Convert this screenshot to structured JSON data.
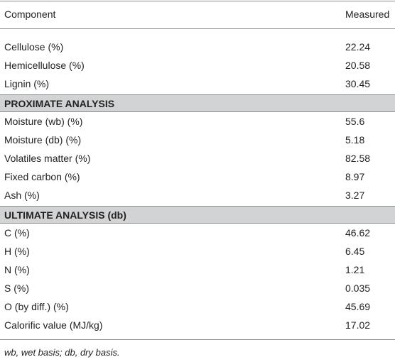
{
  "table": {
    "header": [
      "Component",
      "Measured"
    ],
    "sections": [
      {
        "rows": [
          [
            "Cellulose (%)",
            "22.24"
          ],
          [
            "Hemicellulose (%)",
            "20.58"
          ],
          [
            "Lignin (%)",
            "30.45"
          ]
        ]
      },
      {
        "title": "PROXIMATE ANALYSIS",
        "rows": [
          [
            "Moisture (wb) (%)",
            "55.6"
          ],
          [
            "Moisture (db) (%)",
            "5.18"
          ],
          [
            "Volatiles matter (%)",
            "82.58"
          ],
          [
            "Fixed carbon (%)",
            "8.97"
          ],
          [
            "Ash (%)",
            "3.27"
          ]
        ]
      },
      {
        "title": "ULTIMATE ANALYSIS (db)",
        "rows": [
          [
            "C (%)",
            "46.62"
          ],
          [
            "H (%)",
            "6.45"
          ],
          [
            "N (%)",
            "1.21"
          ],
          [
            "S (%)",
            "0.035"
          ],
          [
            "O (by diff.) (%)",
            "45.69"
          ],
          [
            "Calorific value (MJ/kg)",
            "17.02"
          ]
        ]
      }
    ],
    "footnote": "wb, wet basis; db, dry basis."
  }
}
